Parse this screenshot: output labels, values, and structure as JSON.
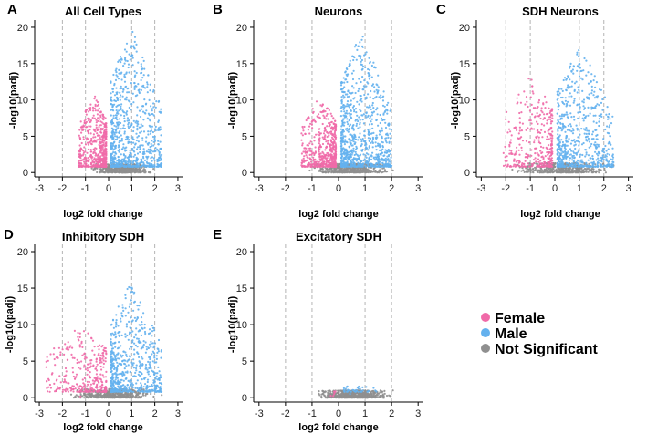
{
  "colors": {
    "female": "#f06aa8",
    "male": "#64b1ee",
    "not_significant": "#8f8f8f",
    "threshold_line": "#b4b4b4",
    "axis": "#000000"
  },
  "legend": {
    "entries": [
      {
        "label": "Female",
        "color": "#f06aa8"
      },
      {
        "label": "Male",
        "color": "#64b1ee"
      },
      {
        "label": "Not Significant",
        "color": "#8f8f8f"
      }
    ]
  },
  "chart_data": [
    {
      "type": "scatter",
      "letter": "A",
      "title": "All Cell Types",
      "xlabel": "log2 fold change",
      "ylabel": "-log10(padj)",
      "xlim": [
        -3.2,
        3.2
      ],
      "ylim": [
        -0.6,
        21
      ],
      "xticks": [
        -3,
        -2,
        -1,
        0,
        1,
        2,
        3
      ],
      "yticks": [
        0,
        5,
        10,
        15,
        20
      ],
      "threshold_lines_x": [
        -2,
        -1,
        1,
        2
      ],
      "series": [
        {
          "name": "Female",
          "color": "#f06aa8",
          "x_range": [
            -1.3,
            -0.1
          ],
          "y_max": 10.5,
          "count": 550
        },
        {
          "name": "Male",
          "color": "#64b1ee",
          "x_range": [
            0.1,
            2.3
          ],
          "y_max": 19.5,
          "count": 800
        },
        {
          "name": "Not Significant",
          "color": "#8f8f8f",
          "x_range": [
            -1.0,
            2.1
          ],
          "y_max": 1.2,
          "count": 500
        }
      ]
    },
    {
      "type": "scatter",
      "letter": "B",
      "title": "Neurons",
      "xlabel": "log2 fold change",
      "ylabel": "-log10(padj)",
      "xlim": [
        -3.2,
        3.2
      ],
      "ylim": [
        -0.6,
        21
      ],
      "xticks": [
        -3,
        -2,
        -1,
        0,
        1,
        2,
        3
      ],
      "yticks": [
        0,
        5,
        10,
        15,
        20
      ],
      "threshold_lines_x": [
        -2,
        -1,
        1,
        2
      ],
      "series": [
        {
          "name": "Female",
          "color": "#f06aa8",
          "x_range": [
            -1.4,
            -0.1
          ],
          "y_max": 10,
          "count": 550
        },
        {
          "name": "Male",
          "color": "#64b1ee",
          "x_range": [
            0.1,
            2.0
          ],
          "y_max": 19,
          "count": 900
        },
        {
          "name": "Not Significant",
          "color": "#8f8f8f",
          "x_range": [
            -1.3,
            2.2
          ],
          "y_max": 1.2,
          "count": 550
        }
      ]
    },
    {
      "type": "scatter",
      "letter": "C",
      "title": "SDH Neurons",
      "xlabel": "log2 fold change",
      "ylabel": "-log10(padj)",
      "xlim": [
        -3.2,
        3.2
      ],
      "ylim": [
        -0.6,
        21
      ],
      "xticks": [
        -3,
        -2,
        -1,
        0,
        1,
        2,
        3
      ],
      "yticks": [
        0,
        5,
        10,
        15,
        20
      ],
      "threshold_lines_x": [
        -2,
        -1,
        1,
        2
      ],
      "series": [
        {
          "name": "Female",
          "color": "#f06aa8",
          "x_range": [
            -2.1,
            -0.1
          ],
          "y_max": 13,
          "count": 350
        },
        {
          "name": "Male",
          "color": "#64b1ee",
          "x_range": [
            0.1,
            2.4
          ],
          "y_max": 17,
          "count": 650
        },
        {
          "name": "Not Significant",
          "color": "#8f8f8f",
          "x_range": [
            -2.0,
            2.6
          ],
          "y_max": 1.3,
          "count": 500
        }
      ]
    },
    {
      "type": "scatter",
      "letter": "D",
      "title": "Inhibitory SDH",
      "xlabel": "log2 fold change",
      "ylabel": "-log10(padj)",
      "xlim": [
        -3.2,
        3.2
      ],
      "ylim": [
        -0.6,
        21
      ],
      "xticks": [
        -3,
        -2,
        -1,
        0,
        1,
        2,
        3
      ],
      "yticks": [
        0,
        5,
        10,
        15,
        20
      ],
      "threshold_lines_x": [
        -2,
        -1,
        1,
        2
      ],
      "series": [
        {
          "name": "Female",
          "color": "#f06aa8",
          "x_range": [
            -2.7,
            -0.1
          ],
          "y_max": 9.5,
          "count": 320
        },
        {
          "name": "Male",
          "color": "#64b1ee",
          "x_range": [
            0.1,
            2.3
          ],
          "y_max": 15.5,
          "count": 650
        },
        {
          "name": "Not Significant",
          "color": "#8f8f8f",
          "x_range": [
            -2.0,
            2.4
          ],
          "y_max": 1.2,
          "count": 450
        }
      ]
    },
    {
      "type": "scatter",
      "letter": "E",
      "title": "Excitatory SDH",
      "xlabel": "log2 fold change",
      "ylabel": "-log10(padj)",
      "xlim": [
        -3.2,
        3.2
      ],
      "ylim": [
        -0.6,
        21
      ],
      "xticks": [
        -3,
        -2,
        -1,
        0,
        1,
        2,
        3
      ],
      "yticks": [
        0,
        5,
        10,
        15,
        20
      ],
      "threshold_lines_x": [
        -2,
        -1,
        1,
        2
      ],
      "series": [
        {
          "name": "Female",
          "color": "#f06aa8",
          "x_range": [
            -0.4,
            -0.1
          ],
          "y_max": 1.2,
          "count": 6
        },
        {
          "name": "Male",
          "color": "#64b1ee",
          "x_range": [
            0.2,
            1.5
          ],
          "y_max": 1.6,
          "count": 40
        },
        {
          "name": "Not Significant",
          "color": "#8f8f8f",
          "x_range": [
            -1.2,
            2.2
          ],
          "y_max": 1.0,
          "count": 600
        }
      ]
    }
  ]
}
